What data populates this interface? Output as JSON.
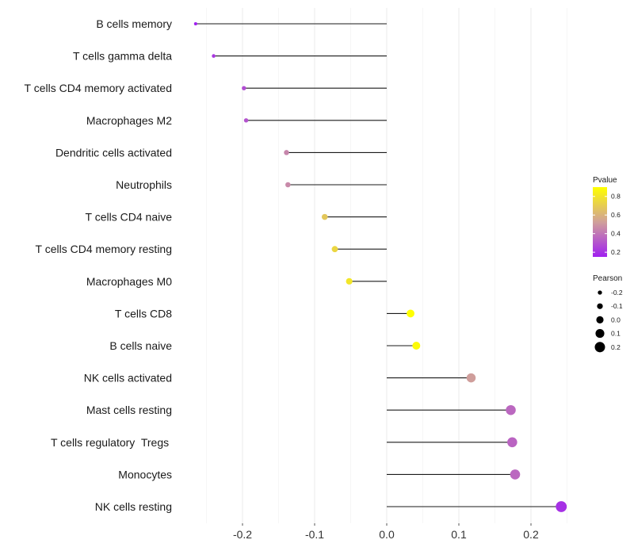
{
  "chart_data": {
    "type": "lollipop",
    "title": "",
    "xlabel": "",
    "ylabel": "",
    "xlim": [
      -0.28,
      0.25
    ],
    "x_ticks": [
      -0.2,
      -0.1,
      0.0,
      0.1,
      0.2
    ],
    "x_tick_labels": [
      "-0.2",
      "-0.1",
      "0.0",
      "0.1",
      "0.2"
    ],
    "grid": true,
    "categories": [
      "B cells memory",
      "T cells gamma delta",
      "T cells CD4 memory activated",
      "Macrophages M2",
      "Dendritic cells activated",
      "Neutrophils",
      "T cells CD4 naive",
      "T cells CD4 memory resting",
      "Macrophages M0",
      "T cells CD8",
      "B cells naive",
      "NK cells activated",
      "Mast cells resting",
      "T cells regulatory  Tregs ",
      "Monocytes",
      "NK cells resting"
    ],
    "series": [
      {
        "name": "Pearson",
        "values": [
          -0.265,
          -0.24,
          -0.198,
          -0.195,
          -0.139,
          -0.137,
          -0.086,
          -0.072,
          -0.052,
          0.033,
          0.041,
          0.117,
          0.172,
          0.174,
          0.178,
          0.242
        ]
      },
      {
        "name": "Pvalue",
        "values": [
          0.15,
          0.22,
          0.28,
          0.3,
          0.45,
          0.46,
          0.68,
          0.74,
          0.8,
          0.9,
          0.88,
          0.52,
          0.36,
          0.35,
          0.36,
          0.2
        ]
      }
    ],
    "legend_position": "right",
    "legend": {
      "color": {
        "title": "Pvalue",
        "range": [
          0.15,
          0.9
        ],
        "ticks": [
          0.8,
          0.6,
          0.4,
          0.2
        ],
        "tick_labels": [
          "0.8",
          "0.6",
          "0.4",
          "0.2"
        ],
        "low_color": "#a020f0",
        "mid_color": "#d0a09a",
        "high_color": "#ffff00"
      },
      "size": {
        "title": "Pearson",
        "values": [
          -0.2,
          -0.1,
          0.0,
          0.1,
          0.2
        ],
        "labels": [
          "-0.2",
          "-0.1",
          "0.0",
          "0.1",
          "0.2"
        ]
      }
    }
  }
}
